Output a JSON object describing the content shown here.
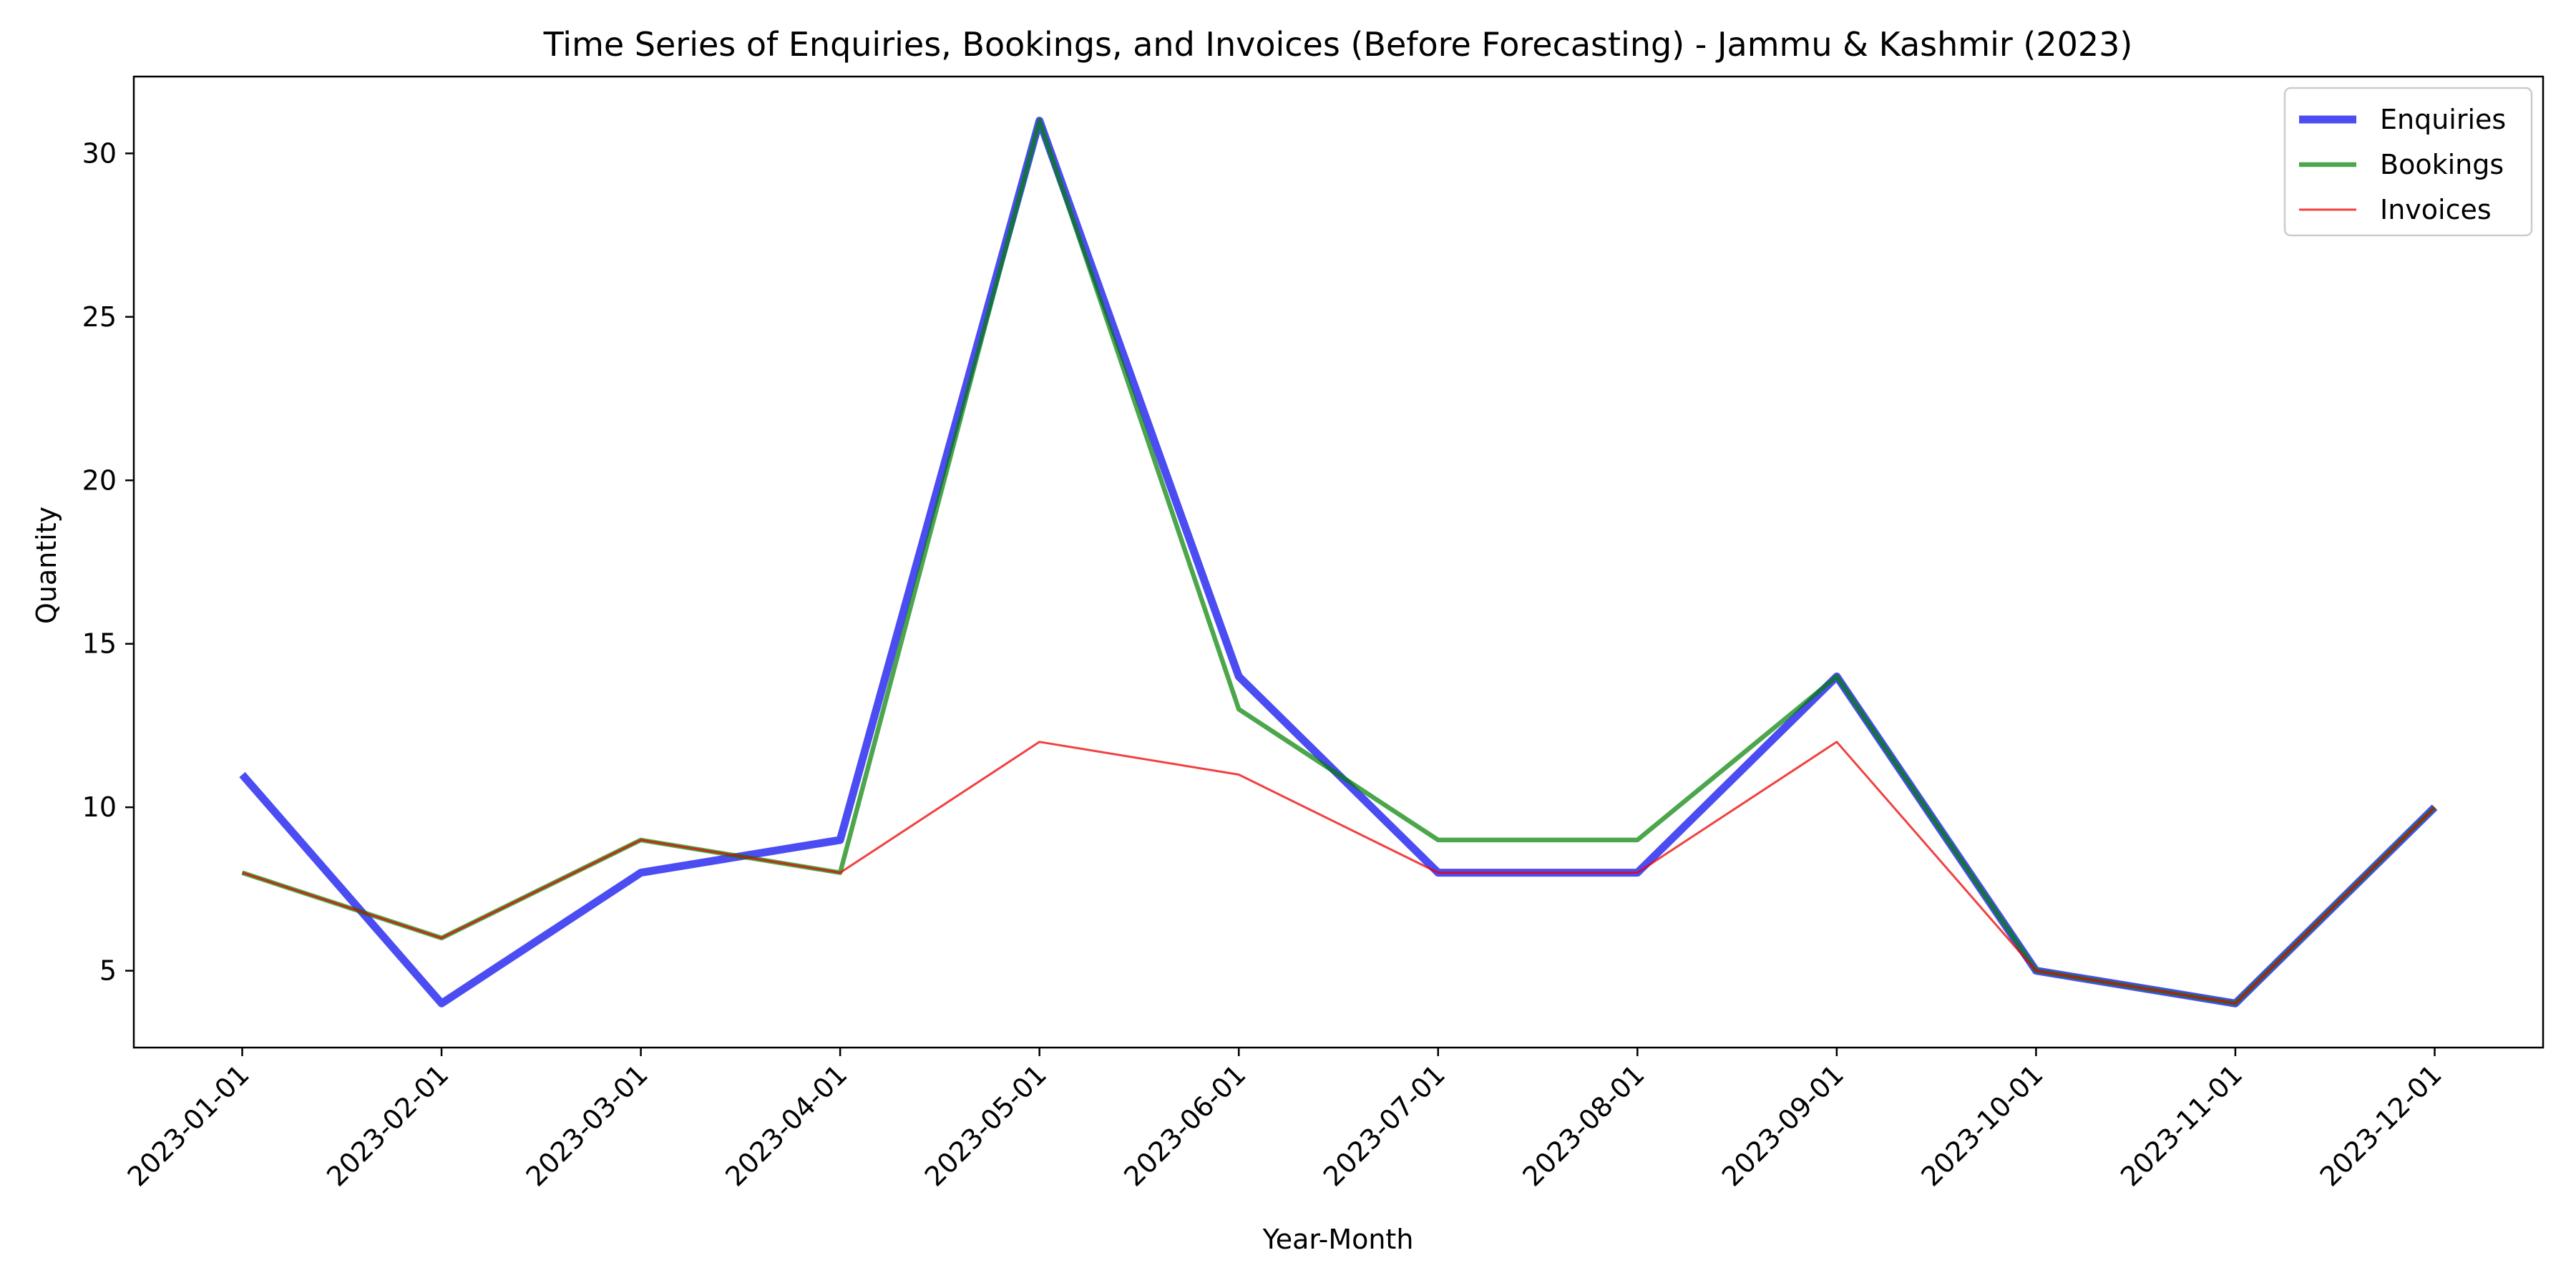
{
  "chart_data": {
    "type": "line",
    "title": "Time Series of Enquiries, Bookings, and Invoices (Before Forecasting) - Jammu & Kashmir (2023)",
    "xlabel": "Year-Month",
    "ylabel": "Quantity",
    "categories": [
      "2023-01-01",
      "2023-02-01",
      "2023-03-01",
      "2023-04-01",
      "2023-05-01",
      "2023-06-01",
      "2023-07-01",
      "2023-08-01",
      "2023-09-01",
      "2023-10-01",
      "2023-11-01",
      "2023-12-01"
    ],
    "ylim": [
      2.65,
      32.35
    ],
    "yticks": [
      5,
      10,
      15,
      20,
      25,
      30
    ],
    "grid": false,
    "legend_position": "top-right",
    "series": [
      {
        "name": "Enquiries",
        "values": [
          11,
          4,
          8,
          9,
          31,
          14,
          8,
          8,
          14,
          5,
          4,
          10
        ],
        "color": "#0000ee",
        "opacity": 0.7
      },
      {
        "name": "Bookings",
        "values": [
          8,
          6,
          9,
          8,
          31,
          13,
          9,
          9,
          14,
          5,
          4,
          10
        ],
        "color": "#008000",
        "opacity": 0.7
      },
      {
        "name": "Invoices",
        "values": [
          8,
          6,
          9,
          8,
          12,
          11,
          8,
          8,
          12,
          5,
          4,
          10
        ],
        "color": "#ee0000",
        "opacity": 0.75
      }
    ]
  }
}
